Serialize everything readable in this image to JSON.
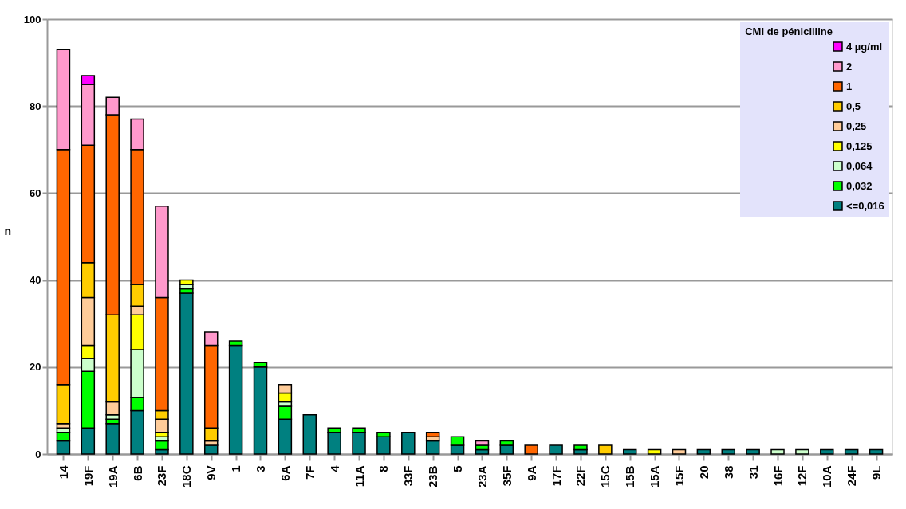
{
  "chart_data": {
    "type": "bar",
    "stacked": true,
    "ylabel": "n",
    "legend_title": "CMI de pénicilline",
    "legend": "top right",
    "grid": "y",
    "ylim": [
      0,
      100
    ],
    "yticks": [
      0,
      20,
      40,
      60,
      80,
      100
    ],
    "categories": [
      "14",
      "19F",
      "19A",
      "6B",
      "23F",
      "18C",
      "9V",
      "1",
      "3",
      "6A",
      "7F",
      "4",
      "11A",
      "8",
      "33F",
      "23B",
      "5",
      "23A",
      "35F",
      "9A",
      "17F",
      "22F",
      "15C",
      "15B",
      "15A",
      "15F",
      "20",
      "38",
      "31",
      "16F",
      "12F",
      "10A",
      "24F",
      "9L"
    ],
    "series": [
      {
        "name": "<=0,016",
        "color": "#008080",
        "values": [
          3,
          6,
          7,
          10,
          1,
          37,
          2,
          25,
          20,
          8,
          9,
          5,
          5,
          4,
          5,
          3,
          2,
          1,
          2,
          null,
          2,
          1,
          null,
          1,
          null,
          null,
          1,
          1,
          1,
          null,
          null,
          1,
          1,
          1
        ]
      },
      {
        "name": "0,032",
        "color": "#00ff00",
        "values": [
          2,
          13,
          1,
          3,
          2,
          1,
          null,
          1,
          1,
          3,
          null,
          1,
          1,
          1,
          null,
          null,
          2,
          1,
          1,
          null,
          null,
          1,
          null,
          null,
          null,
          null,
          null,
          null,
          null,
          null,
          null,
          null,
          null,
          null
        ]
      },
      {
        "name": "0,064",
        "color": "#ccffcc",
        "values": [
          1,
          3,
          1,
          11,
          1,
          1,
          null,
          null,
          null,
          1,
          null,
          null,
          null,
          null,
          null,
          null,
          null,
          null,
          null,
          null,
          null,
          null,
          null,
          null,
          null,
          null,
          null,
          null,
          null,
          1,
          1,
          null,
          null,
          null
        ]
      },
      {
        "name": "0,125",
        "color": "#ffff00",
        "values": [
          null,
          3,
          null,
          8,
          1,
          1,
          null,
          null,
          null,
          2,
          null,
          null,
          null,
          null,
          null,
          null,
          null,
          null,
          null,
          null,
          null,
          null,
          null,
          null,
          1,
          null,
          null,
          null,
          null,
          null,
          null,
          null,
          null,
          null
        ]
      },
      {
        "name": "0,25",
        "color": "#ffcc99",
        "values": [
          1,
          11,
          3,
          2,
          3,
          null,
          1,
          null,
          null,
          2,
          null,
          null,
          null,
          null,
          null,
          1,
          null,
          null,
          null,
          null,
          null,
          null,
          null,
          null,
          null,
          1,
          null,
          null,
          null,
          null,
          null,
          null,
          null,
          null
        ]
      },
      {
        "name": "0,5",
        "color": "#ffcc00",
        "values": [
          9,
          8,
          20,
          5,
          2,
          null,
          3,
          null,
          null,
          null,
          null,
          null,
          null,
          null,
          null,
          null,
          null,
          null,
          null,
          null,
          null,
          null,
          2,
          null,
          null,
          null,
          null,
          null,
          null,
          null,
          null,
          null,
          null,
          null
        ]
      },
      {
        "name": "1",
        "color": "#ff6600",
        "values": [
          54,
          27,
          46,
          31,
          26,
          null,
          19,
          null,
          null,
          null,
          null,
          null,
          null,
          null,
          null,
          1,
          null,
          null,
          null,
          2,
          null,
          null,
          null,
          null,
          null,
          null,
          null,
          null,
          null,
          null,
          null,
          null,
          null,
          null
        ]
      },
      {
        "name": "2",
        "color": "#ff99cc",
        "values": [
          23,
          14,
          4,
          7,
          21,
          null,
          3,
          null,
          null,
          null,
          null,
          null,
          null,
          null,
          null,
          null,
          null,
          1,
          null,
          null,
          null,
          null,
          null,
          null,
          null,
          null,
          null,
          null,
          null,
          null,
          null,
          null,
          null,
          null
        ]
      },
      {
        "name": "4 µg/ml",
        "color": "#ff00ff",
        "values": [
          null,
          2,
          null,
          null,
          null,
          null,
          null,
          null,
          null,
          null,
          null,
          null,
          null,
          null,
          null,
          null,
          null,
          null,
          null,
          null,
          null,
          null,
          null,
          null,
          null,
          null,
          null,
          null,
          null,
          null,
          null,
          null,
          null,
          null
        ]
      }
    ]
  }
}
